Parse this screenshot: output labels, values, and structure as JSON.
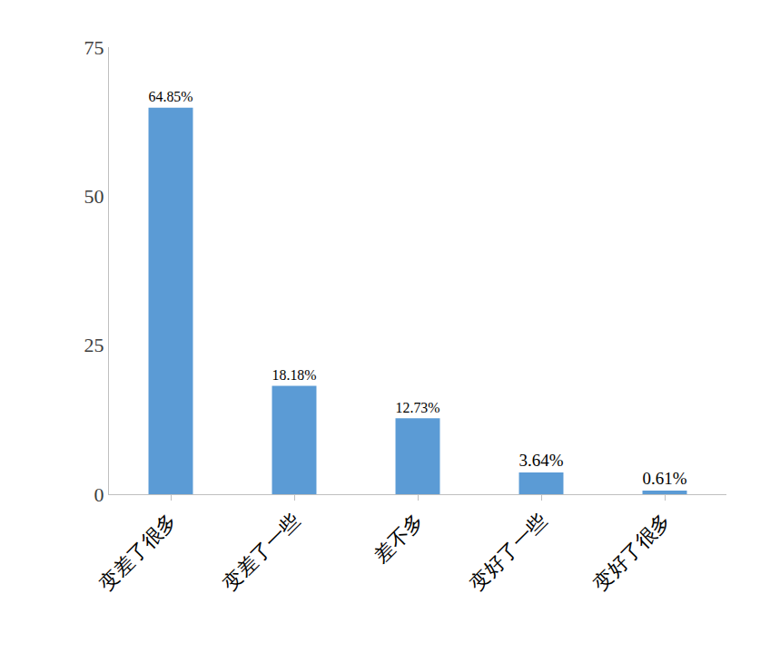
{
  "chart_data": {
    "type": "bar",
    "categories": [
      "变差了很多",
      "变差了一些",
      "差不多",
      "变好了一些",
      "变好了很多"
    ],
    "values": [
      64.85,
      18.18,
      12.73,
      3.64,
      0.61
    ],
    "value_labels": [
      "64.85%",
      "18.18%",
      "12.73%",
      "3.64%",
      "0.61%"
    ],
    "data_labels": true,
    "color": "#5b9bd5",
    "ylim": [
      0,
      75
    ],
    "yticks": [
      0,
      25,
      50,
      75
    ],
    "grid": false
  }
}
